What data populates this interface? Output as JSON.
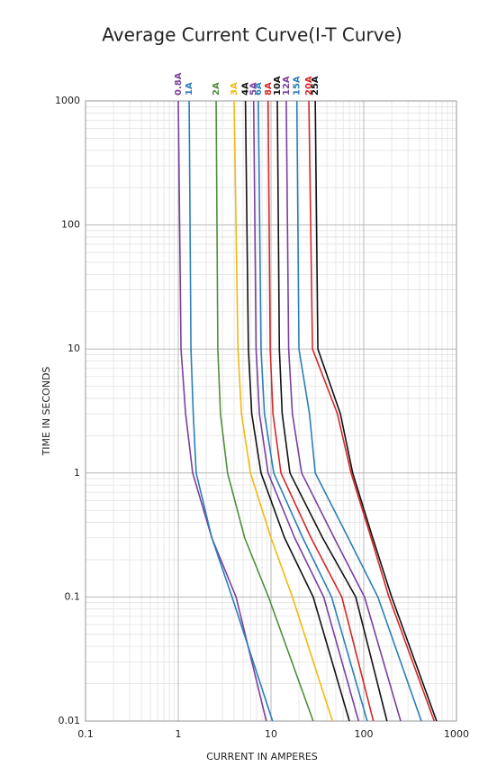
{
  "chart_data": {
    "type": "line",
    "title": "Average Current Curve(I-T Curve)",
    "x_label": "CURRENT IN AMPERES",
    "y_label": "TIME IN SECONDS",
    "x_scale": "log",
    "y_scale": "log",
    "grid": true,
    "xlim": [
      0.1,
      1000
    ],
    "xticks": [
      0.1,
      1,
      10,
      100,
      1000
    ],
    "ylim": [
      0.01,
      1000
    ],
    "yticks": [
      0.01,
      0.1,
      1,
      10,
      100,
      1000
    ],
    "series": [
      {
        "name": "0.8A",
        "color": "#7b3fa0",
        "x": [
          1.0,
          1.07,
          1.2,
          1.43,
          2.3,
          4.2,
          8.9
        ],
        "values": [
          1000,
          10,
          3,
          1,
          0.3,
          0.1,
          0.01
        ]
      },
      {
        "name": "1A",
        "color": "#2a7fb8",
        "x": [
          1.31,
          1.37,
          1.45,
          1.56,
          2.3,
          3.8,
          10.4
        ],
        "values": [
          1000,
          10,
          3,
          1,
          0.3,
          0.1,
          0.01
        ]
      },
      {
        "name": "2A",
        "color": "#4f8f3a",
        "x": [
          2.56,
          2.67,
          2.85,
          3.4,
          5.2,
          9.4,
          28.5
        ],
        "values": [
          1000,
          10,
          3,
          1,
          0.3,
          0.1,
          0.01
        ]
      },
      {
        "name": "3A",
        "color": "#f2b90f",
        "x": [
          4.0,
          4.4,
          4.8,
          6.0,
          10,
          17,
          46
        ],
        "values": [
          1000,
          10,
          3,
          1,
          0.3,
          0.1,
          0.01
        ]
      },
      {
        "name": "4A",
        "color": "#111111",
        "x": [
          5.3,
          5.7,
          6.2,
          7.8,
          14,
          28.5,
          70
        ],
        "values": [
          1000,
          10,
          3,
          1,
          0.3,
          0.1,
          0.01
        ]
      },
      {
        "name": "5A",
        "color": "#7b3fa0",
        "x": [
          6.5,
          6.9,
          7.5,
          9.3,
          18,
          37,
          88
        ],
        "values": [
          1000,
          10,
          3,
          1,
          0.3,
          0.1,
          0.01
        ]
      },
      {
        "name": "6A",
        "color": "#2a7fb8",
        "x": [
          7.3,
          7.8,
          8.5,
          10.7,
          22,
          45,
          109
        ],
        "values": [
          1000,
          10,
          3,
          1,
          0.3,
          0.1,
          0.01
        ]
      },
      {
        "name": "8A",
        "color": "#d62728",
        "x": [
          9.3,
          9.8,
          10.5,
          12.8,
          27,
          58,
          127
        ],
        "values": [
          1000,
          10,
          3,
          1,
          0.3,
          0.1,
          0.01
        ]
      },
      {
        "name": "10A",
        "color": "#111111",
        "x": [
          11.7,
          12.3,
          13.2,
          16,
          36,
          82,
          178
        ],
        "values": [
          1000,
          10,
          3,
          1,
          0.3,
          0.1,
          0.01
        ]
      },
      {
        "name": "12A",
        "color": "#7b3fa0",
        "x": [
          14.6,
          15.5,
          17,
          21.4,
          48,
          102,
          250
        ],
        "values": [
          1000,
          10,
          3,
          1,
          0.3,
          0.1,
          0.01
        ]
      },
      {
        "name": "15A",
        "color": "#2a7fb8",
        "x": [
          19,
          20,
          26,
          30,
          68,
          142,
          418
        ],
        "values": [
          1000,
          10,
          3,
          1,
          0.3,
          0.1,
          0.01
        ]
      },
      {
        "name": "20A",
        "color": "#d62728",
        "x": [
          25.6,
          28,
          52,
          73,
          120,
          187,
          575
        ],
        "values": [
          1000,
          10,
          3,
          1,
          0.3,
          0.1,
          0.01
        ]
      },
      {
        "name": "25A",
        "color": "#111111",
        "x": [
          30,
          32,
          56,
          76,
          125,
          200,
          610
        ],
        "values": [
          1000,
          10,
          3,
          1,
          0.3,
          0.1,
          0.01
        ]
      }
    ]
  }
}
